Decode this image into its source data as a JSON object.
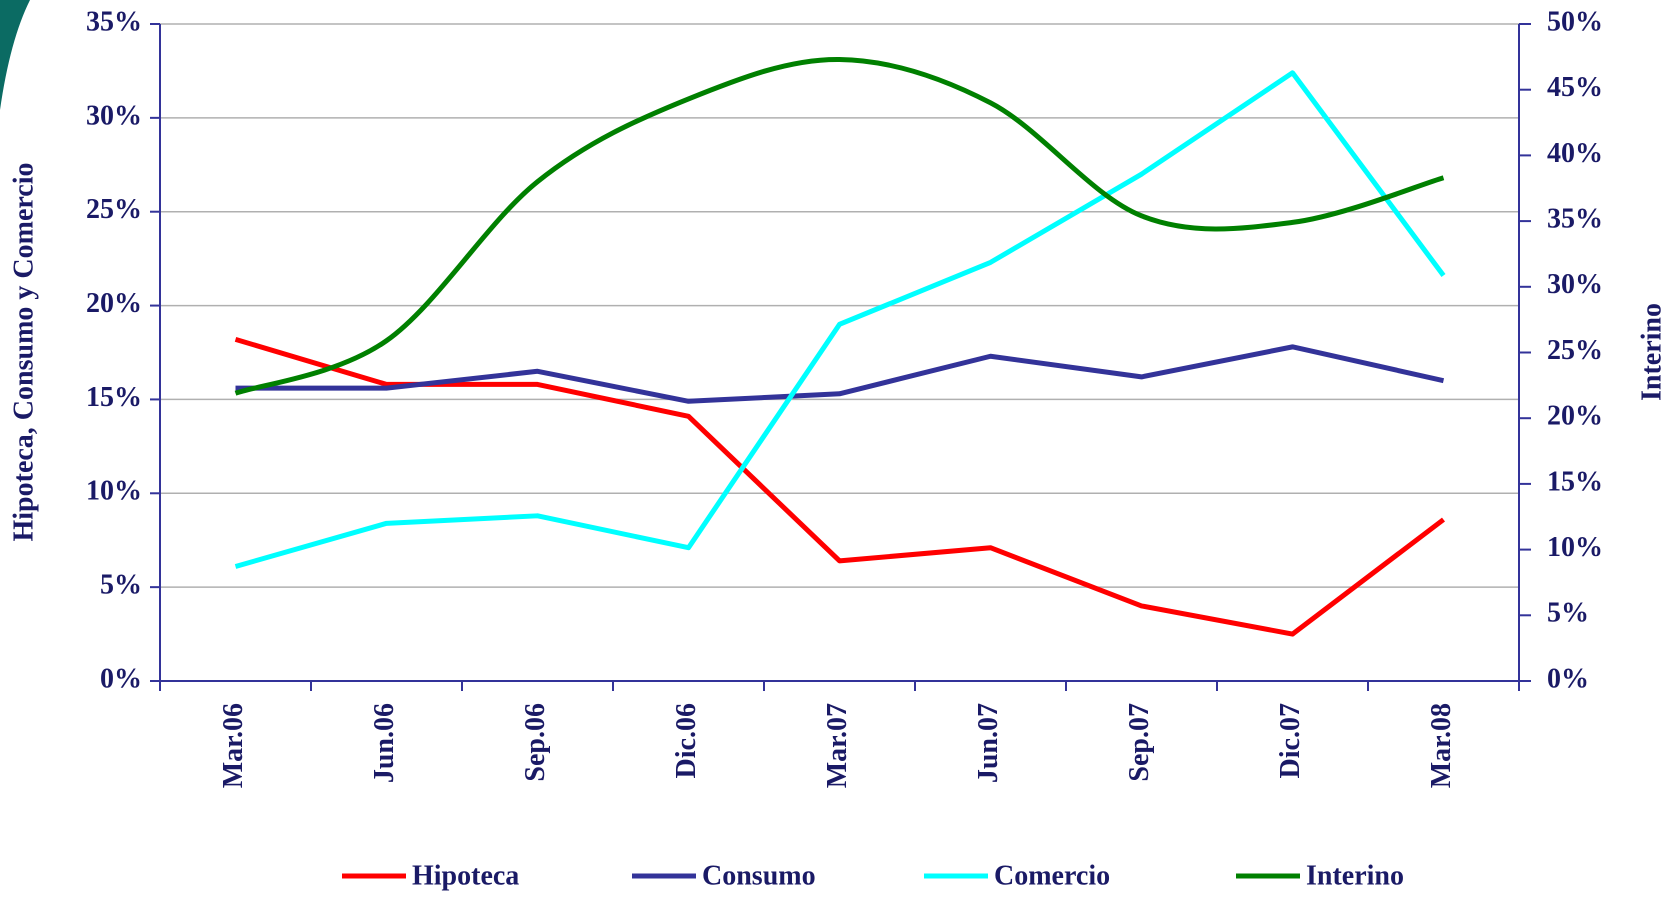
{
  "chart_data": {
    "type": "line",
    "categories": [
      "Mar.06",
      "Jun.06",
      "Sep.06",
      "Dic.06",
      "Mar.07",
      "Jun.07",
      "Sep.07",
      "Dic.07",
      "Mar.08"
    ],
    "y_label": "Hipoteca, Consumo y Comercio",
    "y2_label": "Interino",
    "ylim": [
      0,
      35
    ],
    "yticks": [
      {
        "value": 0,
        "label": "0%"
      },
      {
        "value": 5,
        "label": "5%"
      },
      {
        "value": 10,
        "label": "10%"
      },
      {
        "value": 15,
        "label": "15%"
      },
      {
        "value": 20,
        "label": "20%"
      },
      {
        "value": 25,
        "label": "25%"
      },
      {
        "value": 30,
        "label": "30%"
      },
      {
        "value": 35,
        "label": "35%"
      }
    ],
    "y2lim": [
      0,
      50
    ],
    "y2ticks": [
      {
        "value": 0,
        "label": "0%"
      },
      {
        "value": 5,
        "label": "5%"
      },
      {
        "value": 10,
        "label": "10%"
      },
      {
        "value": 15,
        "label": "15%"
      },
      {
        "value": 20,
        "label": "20%"
      },
      {
        "value": 25,
        "label": "25%"
      },
      {
        "value": 30,
        "label": "30%"
      },
      {
        "value": 35,
        "label": "35%"
      },
      {
        "value": 40,
        "label": "40%"
      },
      {
        "value": 45,
        "label": "45%"
      },
      {
        "value": 50,
        "label": "50%"
      }
    ],
    "grid": true,
    "legend": "bottom",
    "series": [
      {
        "name": "Hipoteca",
        "color": "#ff0000",
        "values": [
          18.2,
          15.8,
          15.8,
          14.1,
          6.4,
          7.1,
          4.0,
          2.5,
          8.6
        ]
      },
      {
        "name": "Consumo",
        "color": "#333399",
        "values": [
          15.6,
          15.6,
          16.5,
          14.9,
          15.3,
          17.3,
          16.2,
          17.8,
          16.0
        ]
      },
      {
        "name": "Comercio",
        "color": "#00ffff",
        "values": [
          6.1,
          8.4,
          8.8,
          7.1,
          19.0,
          22.3,
          27.0,
          32.4,
          21.6
        ]
      },
      {
        "name": "Interino",
        "color": "#008000",
        "axis": "y2",
        "smooth": true,
        "values": [
          21.9,
          25.9,
          38.0,
          44.3,
          47.3,
          44.0,
          35.4,
          34.9,
          38.3
        ]
      }
    ]
  }
}
